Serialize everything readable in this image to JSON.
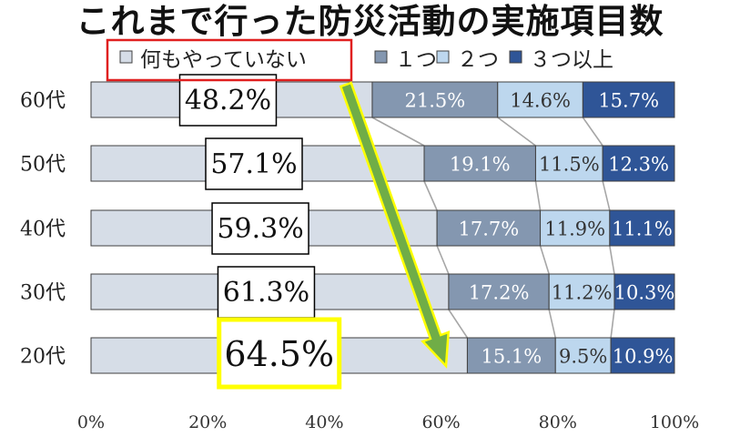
{
  "title": "これまで行った防災活動の実施項目数",
  "chart_data": {
    "type": "bar",
    "orientation": "horizontal",
    "stacked": "percent",
    "categories": [
      "60代",
      "50代",
      "40代",
      "30代",
      "20代"
    ],
    "series": [
      {
        "name": "何もやっていない",
        "color": "#d6dde7",
        "values": [
          48.2,
          57.1,
          59.3,
          61.3,
          64.5
        ]
      },
      {
        "name": "１つ",
        "color": "#8497b0",
        "values": [
          21.5,
          19.1,
          17.7,
          17.2,
          15.1
        ]
      },
      {
        "name": "２つ",
        "color": "#bdd7ee",
        "values": [
          14.6,
          11.5,
          11.9,
          11.2,
          9.5
        ]
      },
      {
        "name": "３つ以上",
        "color": "#2f5597",
        "values": [
          15.7,
          12.3,
          11.1,
          10.3,
          10.9
        ]
      }
    ],
    "data_labels": [
      [
        "48.2%",
        "21.5%",
        "14.6%",
        "15.7%"
      ],
      [
        "57.1%",
        "19.1%",
        "11.5%",
        "12.3%"
      ],
      [
        "59.3%",
        "17.7%",
        "11.9%",
        "11.1%"
      ],
      [
        "61.3%",
        "17.2%",
        "11.2%",
        "10.3%"
      ],
      [
        "64.5%",
        "15.1%",
        "9.5%",
        "10.9%"
      ]
    ],
    "x_ticks": [
      "0%",
      "20%",
      "40%",
      "60%",
      "80%",
      "100%"
    ],
    "xlim": [
      0,
      100
    ],
    "legend_position": "top",
    "highlight": {
      "legend_box_color": "#e02020",
      "label_box_color": "#ffff00",
      "highlighted_row": "20代",
      "arrow_fill": "#70ad47",
      "arrow_stroke": "#ffff00"
    }
  }
}
